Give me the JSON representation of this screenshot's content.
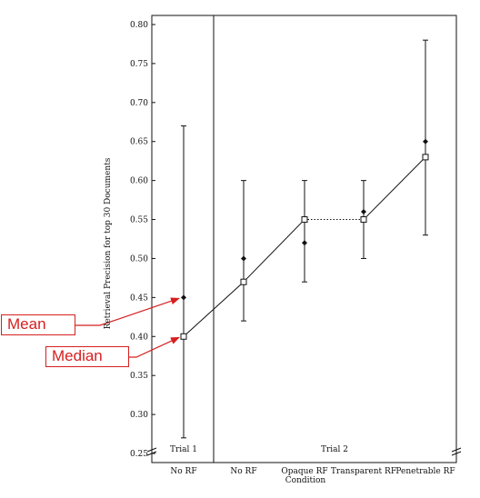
{
  "chart_data": {
    "type": "line",
    "ylabel": "Retrieval Precision for top 30 Documents",
    "xlabel": "Condition",
    "ylim": [
      0.25,
      0.8
    ],
    "yticks": [
      "0.80",
      "0.75",
      "0.70",
      "0.65",
      "0.60",
      "0.55",
      "0.50",
      "0.45",
      "0.40",
      "0.35",
      "0.30",
      "0.25"
    ],
    "categories": [
      "No RF",
      "No RF",
      "Opaque RF",
      "Transparent RF",
      "Penetrable RF"
    ],
    "groups": [
      "Trial 1",
      "Trial 2"
    ],
    "series": [
      {
        "name": "Mean",
        "values": [
          0.45,
          0.5,
          0.52,
          0.56,
          0.65
        ]
      },
      {
        "name": "Median",
        "values": [
          0.4,
          0.47,
          0.55,
          0.55,
          0.63
        ]
      }
    ],
    "error_bars": [
      {
        "low": 0.27,
        "high": 0.67
      },
      {
        "low": 0.42,
        "high": 0.6
      },
      {
        "low": 0.47,
        "high": 0.6
      },
      {
        "low": 0.5,
        "high": 0.6
      },
      {
        "low": 0.53,
        "high": 0.78
      }
    ],
    "grid": false,
    "annotations": [
      {
        "label": "Mean",
        "target_series": "Mean",
        "target_index": 0
      },
      {
        "label": "Median",
        "target_series": "Median",
        "target_index": 0
      }
    ],
    "colors": {
      "ink": "#111111",
      "annotation": "#d61f1f"
    }
  }
}
